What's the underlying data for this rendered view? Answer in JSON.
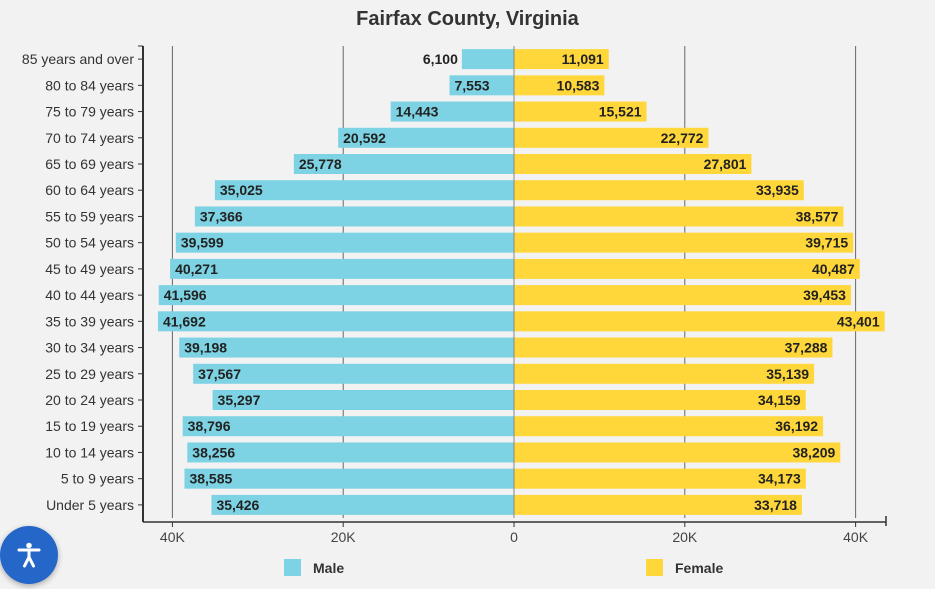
{
  "chart_data": {
    "type": "bar",
    "orientation": "horizontal-population-pyramid",
    "title": "Fairfax County, Virginia",
    "categories": [
      "85 years and over",
      "80 to 84 years",
      "75 to 79 years",
      "70 to 74 years",
      "65 to 69 years",
      "60 to 64 years",
      "55 to 59 years",
      "50 to 54 years",
      "45 to 49 years",
      "40 to 44 years",
      "35 to 39 years",
      "30 to 34 years",
      "25 to 29 years",
      "20 to 24 years",
      "15 to 19 years",
      "10 to 14 years",
      "5 to 9 years",
      "Under 5 years"
    ],
    "series": [
      {
        "name": "Male",
        "color": "#7dd3e3",
        "values": [
          6100,
          7553,
          14443,
          20592,
          25778,
          35025,
          37366,
          39599,
          40271,
          41596,
          41692,
          39198,
          37567,
          35297,
          38796,
          38256,
          38585,
          35426
        ]
      },
      {
        "name": "Female",
        "color": "#ffd73a",
        "values": [
          11091,
          10583,
          15521,
          22772,
          27801,
          33935,
          38577,
          39715,
          40487,
          39453,
          43401,
          37288,
          35139,
          34159,
          36192,
          38209,
          34173,
          33718
        ]
      }
    ],
    "data_labels": {
      "Male": [
        "6,100",
        "7,553",
        "14,443",
        "20,592",
        "25,778",
        "35,025",
        "37,366",
        "39,599",
        "40,271",
        "41,596",
        "41,692",
        "39,198",
        "37,567",
        "35,297",
        "38,796",
        "38,256",
        "38,585",
        "35,426"
      ],
      "Female": [
        "11,091",
        "10,583",
        "15,521",
        "22,772",
        "27,801",
        "33,935",
        "38,577",
        "39,715",
        "40,487",
        "39,453",
        "43,401",
        "37,288",
        "35,139",
        "34,159",
        "36,192",
        "38,209",
        "34,173",
        "33,718"
      ]
    },
    "xticks": [
      {
        "value": -40000,
        "label": "40K"
      },
      {
        "value": -20000,
        "label": "20K"
      },
      {
        "value": 0,
        "label": "0"
      },
      {
        "value": 20000,
        "label": "20K"
      },
      {
        "value": 40000,
        "label": "40K"
      }
    ],
    "xlim": [
      -43500,
      43500
    ],
    "grid": true,
    "legend_position": "bottom"
  },
  "accessibility": {
    "icon": "accessibility-icon",
    "color": "#2567c9"
  }
}
